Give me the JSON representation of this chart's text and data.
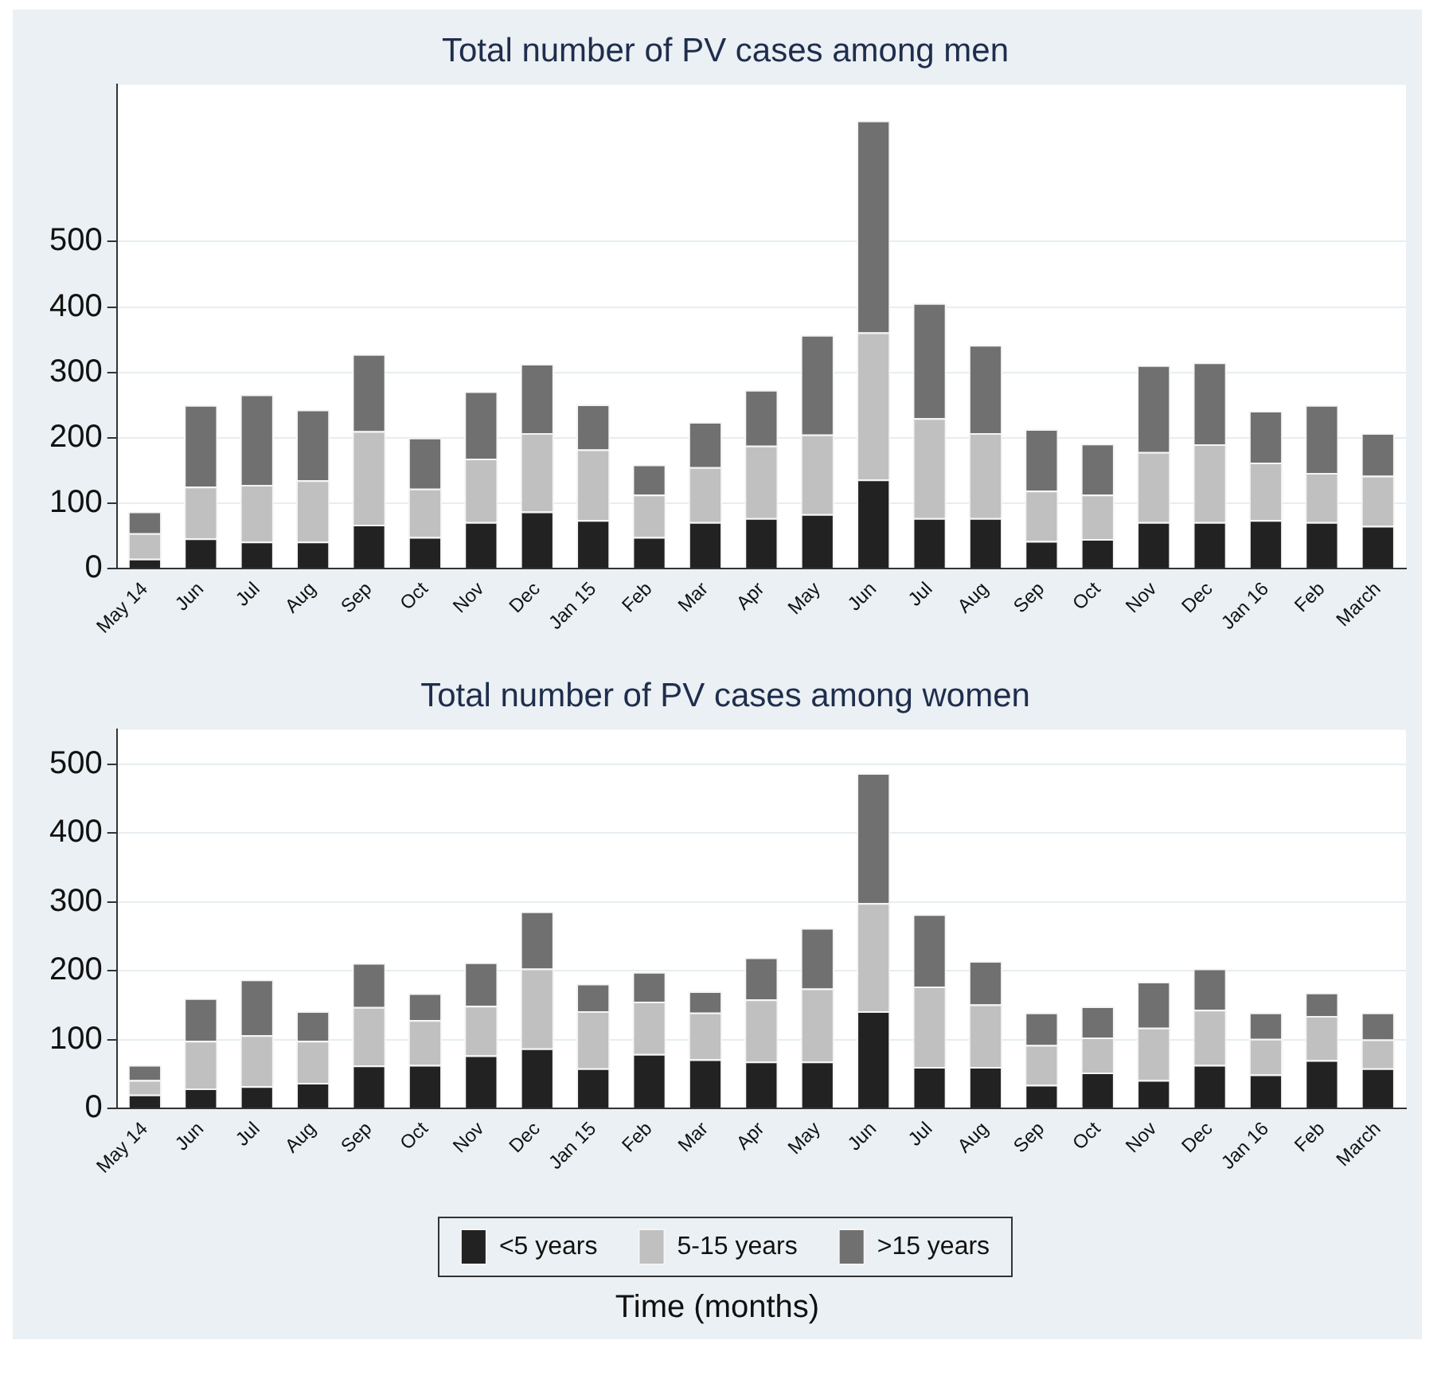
{
  "chart_data": [
    {
      "type": "bar",
      "title": "Total number of PV cases among men",
      "stacked": true,
      "grid": "y",
      "categories": [
        "May 14",
        "Jun",
        "Jul",
        "Aug",
        "Sep",
        "Oct",
        "Nov",
        "Dec",
        "Jan 15",
        "Feb",
        "Mar",
        "Apr",
        "May",
        "Jun",
        "Jul",
        "Aug",
        "Sep",
        "Oct",
        "Nov",
        "Dec",
        "Jan 16",
        "Feb",
        "March"
      ],
      "ylim": [
        0,
        740
      ],
      "yticks": [
        0,
        100,
        200,
        300,
        400,
        500
      ],
      "series": [
        {
          "color": "#222222",
          "values": [
            15,
            46,
            41,
            41,
            67,
            48,
            71,
            87,
            74,
            48,
            71,
            77,
            83,
            136,
            77,
            77,
            42,
            45,
            71,
            71,
            74,
            71,
            65
          ]
        },
        {
          "color": "#c0c0c0",
          "values": [
            39,
            79,
            87,
            94,
            143,
            74,
            97,
            120,
            108,
            65,
            84,
            111,
            122,
            225,
            153,
            130,
            77,
            68,
            107,
            119,
            88,
            75,
            77
          ]
        },
        {
          "color": "#707070",
          "values": [
            33,
            125,
            138,
            108,
            118,
            78,
            103,
            106,
            69,
            46,
            69,
            85,
            152,
            324,
            176,
            135,
            94,
            78,
            133,
            125,
            79,
            104,
            65
          ]
        }
      ]
    },
    {
      "type": "bar",
      "title": "Total number of PV cases among women",
      "stacked": true,
      "grid": "y",
      "legend": "bottom",
      "xlabel": "Time (months)",
      "categories": [
        "May 14",
        "Jun",
        "Jul",
        "Aug",
        "Sep",
        "Oct",
        "Nov",
        "Dec",
        "Jan 15",
        "Feb",
        "Mar",
        "Apr",
        "May",
        "Jun",
        "Jul",
        "Aug",
        "Sep",
        "Oct",
        "Nov",
        "Dec",
        "Jan 16",
        "Feb",
        "March"
      ],
      "ylim": [
        0,
        550
      ],
      "yticks": [
        0,
        100,
        200,
        300,
        400,
        500
      ],
      "series": [
        {
          "name": "<5 years",
          "color": "#222222",
          "values": [
            20,
            29,
            32,
            37,
            62,
            63,
            77,
            87,
            58,
            79,
            71,
            68,
            68,
            141,
            60,
            60,
            34,
            52,
            41,
            63,
            49,
            70,
            58
          ]
        },
        {
          "name": "5-15 years",
          "color": "#c0c0c0",
          "values": [
            21,
            69,
            74,
            61,
            85,
            65,
            72,
            116,
            83,
            76,
            68,
            90,
            106,
            157,
            117,
            91,
            58,
            51,
            76,
            80,
            52,
            64,
            42
          ]
        },
        {
          "name": ">15 years",
          "color": "#707070",
          "values": [
            22,
            62,
            81,
            43,
            64,
            39,
            63,
            83,
            40,
            43,
            31,
            61,
            88,
            189,
            105,
            63,
            47,
            45,
            67,
            60,
            38,
            34,
            39
          ]
        }
      ]
    }
  ]
}
